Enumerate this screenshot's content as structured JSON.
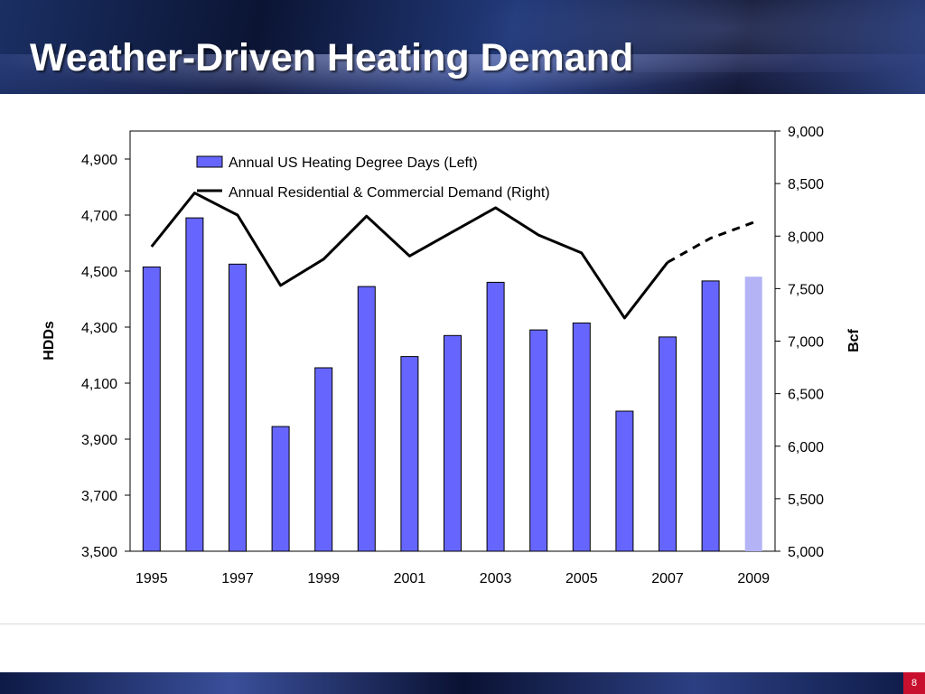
{
  "slide": {
    "title": "Weather-Driven Heating Demand",
    "page_number": "8"
  },
  "colors": {
    "bar": "#6666ff",
    "bar_projected": "#b3b3f5",
    "line": "#000000"
  },
  "chart_data": {
    "type": "bar",
    "categories": [
      "1995",
      "1996",
      "1997",
      "1998",
      "1999",
      "2000",
      "2001",
      "2002",
      "2003",
      "2004",
      "2005",
      "2006",
      "2007",
      "2008",
      "2009"
    ],
    "x_tick_labels": [
      "1995",
      "1997",
      "1999",
      "2001",
      "2003",
      "2005",
      "2007",
      "2009"
    ],
    "series": [
      {
        "name": "Annual US Heating Degree Days (Left)",
        "type": "bar",
        "axis": "left",
        "values": [
          4515,
          4690,
          4525,
          3945,
          4155,
          4445,
          4195,
          4270,
          4460,
          4290,
          4315,
          4000,
          4265,
          4465,
          4480
        ],
        "projected_from_index": 14
      },
      {
        "name": "Annual Residential & Commercial Demand (Right)",
        "type": "line",
        "axis": "right",
        "values": [
          7900,
          8410,
          8200,
          7530,
          7780,
          8190,
          7810,
          8040,
          8270,
          8010,
          7840,
          7220,
          7750,
          7980,
          8130
        ],
        "projected_from_index": 13
      }
    ],
    "y_left": {
      "label": "HDDs",
      "lim": [
        3500,
        5000
      ],
      "ticks": [
        3500,
        3700,
        3900,
        4100,
        4300,
        4500,
        4700,
        4900
      ],
      "tick_labels": [
        "3,500",
        "3,700",
        "3,900",
        "4,100",
        "4,300",
        "4,500",
        "4,700",
        "4,900"
      ]
    },
    "y_right": {
      "label": "Bcf",
      "lim": [
        5000,
        9000
      ],
      "ticks": [
        5000,
        5500,
        6000,
        6500,
        7000,
        7500,
        8000,
        8500,
        9000
      ],
      "tick_labels": [
        "5,000",
        "5,500",
        "6,000",
        "6,500",
        "7,000",
        "7,500",
        "8,000",
        "8,500",
        "9,000"
      ]
    },
    "grid": false,
    "legend_position": "top-left"
  }
}
